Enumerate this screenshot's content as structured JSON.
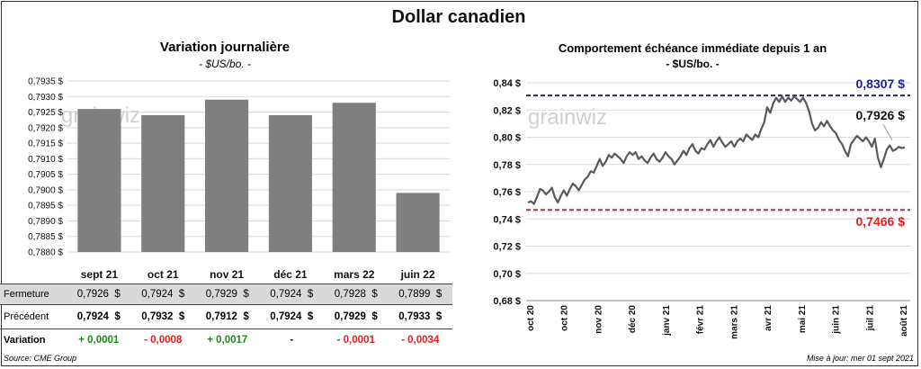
{
  "title": "Dollar canadien",
  "left_panel": {
    "title": "Variation  journalière",
    "unit": "- $US/bo. -",
    "watermark": "grainwiz"
  },
  "right_panel": {
    "title": "Comportement échéance immédiate depuis 1 an",
    "unit": "- $US/bo. -",
    "watermark": "grainwiz",
    "high_label": "0,8307 $",
    "low_label": "0,7466 $",
    "last_label": "0,7926 $"
  },
  "table": {
    "rows": [
      {
        "label": "Fermeture",
        "values": [
          "0,7926",
          "0,7924",
          "0,7929",
          "0,7924",
          "0,7928",
          "0,7899"
        ],
        "currency": "$"
      },
      {
        "label": "Précédent",
        "values": [
          "0,7924",
          "0,7932",
          "0,7912",
          "0,7924",
          "0,7929",
          "0,7933"
        ],
        "currency": "$"
      },
      {
        "label": "Variation",
        "values": [
          "+ 0,0001",
          "- 0,0008",
          "+ 0,0017",
          "-",
          "- 0,0001",
          "- 0,0034"
        ],
        "signs": [
          "pos",
          "neg",
          "pos",
          "zero",
          "neg",
          "neg"
        ]
      }
    ]
  },
  "footer": {
    "source": "Source: CME Group",
    "update": "Mise à jour: mer 01 sept 2021"
  },
  "colors": {
    "bar": "#7f7f7f",
    "line": "#595959",
    "high": "#1f1fa0",
    "low": "#e02020",
    "grid": "#d9d9d9"
  },
  "chart_data": [
    {
      "type": "bar",
      "title": "Variation  journalière",
      "categories": [
        "sept 21",
        "oct 21",
        "nov 21",
        "déc 21",
        "mars 22",
        "juin 22"
      ],
      "values": [
        0.7926,
        0.7924,
        0.7929,
        0.7924,
        0.7928,
        0.7899
      ],
      "ylim": [
        0.788,
        0.7935
      ],
      "yticks": [
        "0,7880 $",
        "0,7885 $",
        "0,7890 $",
        "0,7895 $",
        "0,7900 $",
        "0,7905 $",
        "0,7910 $",
        "0,7915 $",
        "0,7920 $",
        "0,7925 $",
        "0,7930 $",
        "0,7935 $"
      ],
      "ytick_values": [
        0.788,
        0.7885,
        0.789,
        0.7895,
        0.79,
        0.7905,
        0.791,
        0.7915,
        0.792,
        0.7925,
        0.793,
        0.7935
      ],
      "grid": true
    },
    {
      "type": "line",
      "title": "Comportement échéance immédiate depuis 1 an",
      "x_labels": [
        "oct 20",
        "oct 20",
        "nov 20",
        "déc 20",
        "janv 21",
        "févr 21",
        "mars 21",
        "avr 21",
        "mai 21",
        "juin 21",
        "juil 21",
        "août 21"
      ],
      "ylim": [
        0.68,
        0.84
      ],
      "yticks": [
        "0,68 $",
        "0,70 $",
        "0,72 $",
        "0,74 $",
        "0,76 $",
        "0,78 $",
        "0,80 $",
        "0,82 $",
        "0,84 $"
      ],
      "ytick_values": [
        0.68,
        0.7,
        0.72,
        0.74,
        0.76,
        0.78,
        0.8,
        0.82,
        0.84
      ],
      "grid": true,
      "values": [
        0.752,
        0.753,
        0.751,
        0.756,
        0.762,
        0.761,
        0.758,
        0.76,
        0.763,
        0.756,
        0.752,
        0.757,
        0.761,
        0.757,
        0.762,
        0.766,
        0.764,
        0.761,
        0.765,
        0.769,
        0.771,
        0.775,
        0.774,
        0.779,
        0.784,
        0.779,
        0.782,
        0.787,
        0.785,
        0.788,
        0.786,
        0.784,
        0.781,
        0.786,
        0.789,
        0.787,
        0.789,
        0.784,
        0.786,
        0.783,
        0.781,
        0.785,
        0.788,
        0.784,
        0.782,
        0.785,
        0.789,
        0.786,
        0.784,
        0.78,
        0.783,
        0.786,
        0.79,
        0.787,
        0.792,
        0.795,
        0.79,
        0.788,
        0.792,
        0.791,
        0.795,
        0.798,
        0.793,
        0.797,
        0.8,
        0.796,
        0.793,
        0.795,
        0.797,
        0.793,
        0.797,
        0.799,
        0.797,
        0.802,
        0.8,
        0.798,
        0.802,
        0.8,
        0.806,
        0.811,
        0.822,
        0.818,
        0.825,
        0.829,
        0.826,
        0.83,
        0.826,
        0.829,
        0.827,
        0.83,
        0.828,
        0.826,
        0.829,
        0.825,
        0.819,
        0.81,
        0.805,
        0.807,
        0.811,
        0.808,
        0.812,
        0.808,
        0.805,
        0.803,
        0.798,
        0.795,
        0.79,
        0.786,
        0.795,
        0.798,
        0.801,
        0.799,
        0.797,
        0.8,
        0.797,
        0.793,
        0.799,
        0.785,
        0.778,
        0.784,
        0.791,
        0.794,
        0.79,
        0.791,
        0.793,
        0.792,
        0.7926
      ],
      "high": 0.8307,
      "low": 0.7466,
      "last": 0.7926
    }
  ]
}
